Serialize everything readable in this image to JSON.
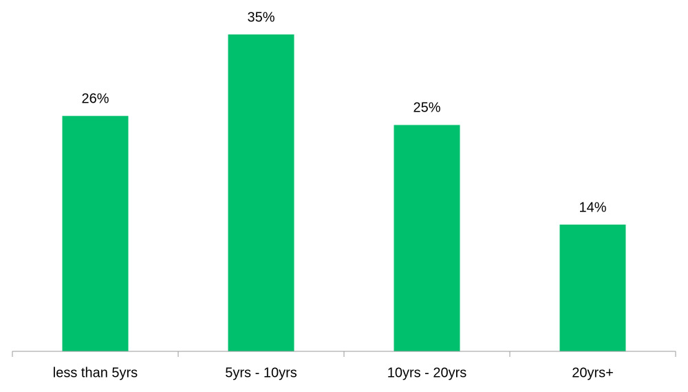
{
  "chart_data": {
    "type": "bar",
    "categories": [
      "less than 5yrs",
      "5yrs - 10yrs",
      "10yrs - 20yrs",
      "20yrs+"
    ],
    "values": [
      26,
      35,
      25,
      14
    ],
    "value_labels": [
      "26%",
      "35%",
      "25%",
      "14%"
    ],
    "color": "#00c06e"
  }
}
